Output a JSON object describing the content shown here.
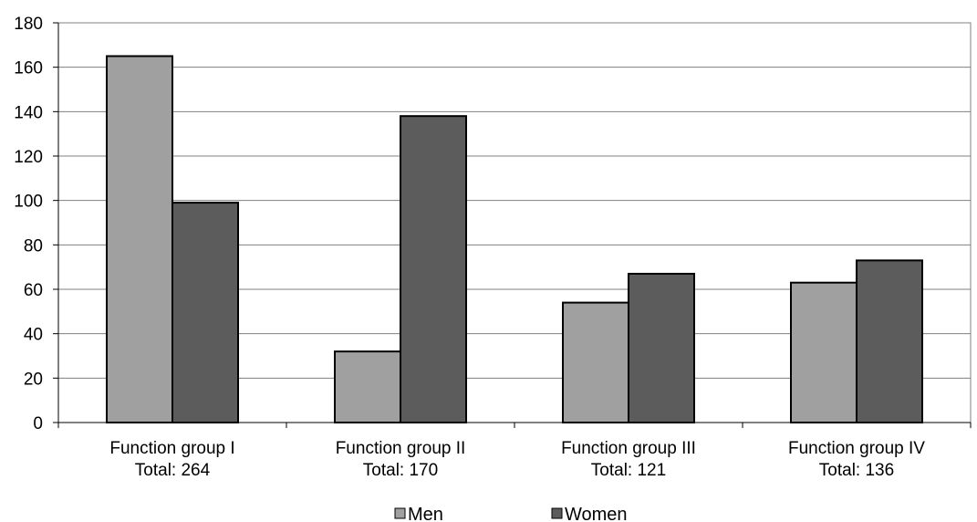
{
  "chart_data": {
    "type": "bar",
    "categories": [
      {
        "name": "Function group I",
        "total": "Total: 264"
      },
      {
        "name": "Function group II",
        "total": "Total: 170"
      },
      {
        "name": "Function group III",
        "total": "Total: 121"
      },
      {
        "name": "Function group IV",
        "total": "Total: 136"
      }
    ],
    "series": [
      {
        "name": "Men",
        "color": "#a0a0a0",
        "values": [
          165,
          32,
          54,
          63
        ]
      },
      {
        "name": "Women",
        "color": "#5c5c5c",
        "values": [
          99,
          138,
          67,
          73
        ]
      }
    ],
    "title": "",
    "xlabel": "",
    "ylabel": "",
    "ylim": [
      0,
      180
    ],
    "yticks": [
      0,
      20,
      40,
      60,
      80,
      100,
      120,
      140,
      160,
      180
    ],
    "grid": true,
    "legend_position": "bottom"
  }
}
